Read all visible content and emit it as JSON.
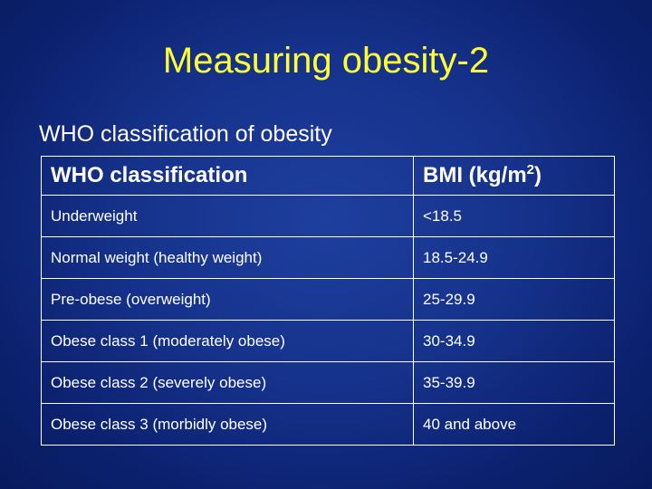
{
  "slide": {
    "title": "Measuring obesity-2",
    "subtitle": "WHO classification of obesity"
  },
  "table": {
    "headers": {
      "classification": "WHO classification",
      "bmi_prefix": "BMI (kg/m",
      "bmi_sup": "2",
      "bmi_suffix": ")"
    },
    "rows": [
      {
        "classification": "Underweight",
        "bmi": "<18.5"
      },
      {
        "classification": "Normal weight (healthy weight)",
        "bmi": "18.5-24.9"
      },
      {
        "classification": "Pre-obese (overweight)",
        "bmi": "25-29.9"
      },
      {
        "classification": "Obese class 1 (moderately obese)",
        "bmi": "30-34.9"
      },
      {
        "classification": "Obese class 2 (severely obese)",
        "bmi": "35-39.9"
      },
      {
        "classification": "Obese class 3 (morbidly obese)",
        "bmi": "40 and above"
      }
    ]
  },
  "colors": {
    "title": "#ffff33",
    "text": "#ffffff",
    "background": "#15318a"
  }
}
